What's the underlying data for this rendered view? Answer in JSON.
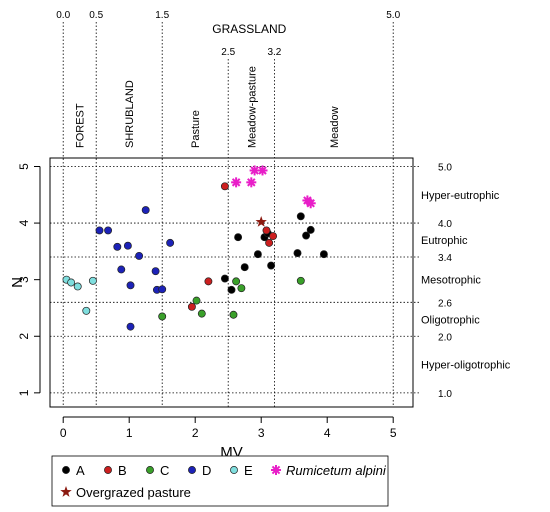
{
  "chart_data": {
    "type": "scatter",
    "xlabel": "MV",
    "ylabel": "N",
    "xlim": [
      -0.2,
      5.3
    ],
    "ylim": [
      0.75,
      5.15
    ],
    "x_ticks": [
      0,
      1,
      2,
      3,
      4,
      5
    ],
    "y_ticks": [
      1,
      2,
      3,
      4,
      5
    ],
    "top_axis": {
      "ticks": [
        0.0,
        0.5,
        1.5,
        2.5,
        3.2,
        5.0
      ],
      "tick_labels": [
        "0.0",
        "0.5",
        "1.5",
        "2.5",
        "3.2",
        "5.0"
      ],
      "group_label": "GRASSLAND",
      "vertical_labels": [
        {
          "text": "FOREST",
          "x": 0.25
        },
        {
          "text": "SHRUBLAND",
          "x": 1.0
        },
        {
          "text": "Pasture",
          "x": 2.0
        },
        {
          "text": "Meadow-pasture",
          "x": 2.85
        },
        {
          "text": "Meadow",
          "x": 4.1
        }
      ]
    },
    "right_axis": {
      "ticks": [
        1.0,
        2.0,
        2.6,
        3.4,
        4.0,
        5.0
      ],
      "tick_labels": [
        "1.0",
        "2.0",
        "2.6",
        "3.4",
        "4.0",
        "5.0"
      ],
      "zones": [
        {
          "label": "Hyper-eutrophic",
          "y": 4.5
        },
        {
          "label": "Eutrophic",
          "y": 3.7
        },
        {
          "label": "Mesotrophic",
          "y": 3.0
        },
        {
          "label": "Oligotrophic",
          "y": 2.3
        },
        {
          "label": "Hyper-oligotrophic",
          "y": 1.5
        }
      ]
    },
    "series": [
      {
        "name": "A",
        "color": "#000000",
        "marker": "circle",
        "points": [
          [
            2.45,
            3.02
          ],
          [
            2.55,
            2.82
          ],
          [
            2.65,
            3.75
          ],
          [
            2.75,
            3.22
          ],
          [
            2.95,
            3.45
          ],
          [
            3.05,
            3.75
          ],
          [
            3.1,
            3.82
          ],
          [
            3.15,
            3.25
          ],
          [
            3.55,
            3.47
          ],
          [
            3.6,
            4.12
          ],
          [
            3.68,
            3.78
          ],
          [
            3.75,
            3.88
          ],
          [
            3.95,
            3.45
          ]
        ]
      },
      {
        "name": "B",
        "color": "#cc1f1f",
        "marker": "circle",
        "points": [
          [
            1.95,
            2.52
          ],
          [
            2.2,
            2.97
          ],
          [
            2.45,
            4.65
          ],
          [
            3.08,
            3.87
          ],
          [
            3.12,
            3.65
          ],
          [
            3.18,
            3.77
          ]
        ]
      },
      {
        "name": "C",
        "color": "#3aa02a",
        "marker": "circle",
        "points": [
          [
            1.5,
            2.35
          ],
          [
            2.02,
            2.63
          ],
          [
            2.1,
            2.4
          ],
          [
            2.58,
            2.38
          ],
          [
            2.62,
            2.97
          ],
          [
            2.7,
            2.85
          ],
          [
            3.6,
            2.98
          ]
        ]
      },
      {
        "name": "D",
        "color": "#1c22b8",
        "marker": "circle",
        "points": [
          [
            0.55,
            3.87
          ],
          [
            0.68,
            3.87
          ],
          [
            0.82,
            3.58
          ],
          [
            0.88,
            3.18
          ],
          [
            0.98,
            3.6
          ],
          [
            1.02,
            2.9
          ],
          [
            1.02,
            2.17
          ],
          [
            1.15,
            3.42
          ],
          [
            1.25,
            4.23
          ],
          [
            1.4,
            3.15
          ],
          [
            1.42,
            2.82
          ],
          [
            1.5,
            2.83
          ],
          [
            1.62,
            3.65
          ]
        ]
      },
      {
        "name": "E",
        "color": "#7fdede",
        "marker": "circle",
        "points": [
          [
            0.05,
            3.0
          ],
          [
            0.12,
            2.95
          ],
          [
            0.22,
            2.88
          ],
          [
            0.35,
            2.45
          ],
          [
            0.45,
            2.98
          ]
        ]
      },
      {
        "name": "Rumicetum alpini",
        "color": "#e81ec8",
        "marker": "asterisk",
        "points": [
          [
            2.62,
            4.72
          ],
          [
            2.85,
            4.72
          ],
          [
            2.9,
            4.93
          ],
          [
            3.02,
            4.93
          ],
          [
            3.7,
            4.4
          ],
          [
            3.75,
            4.35
          ]
        ]
      },
      {
        "name": "Overgrazed pasture",
        "color": "#8b1a10",
        "marker": "star",
        "points": [
          [
            3.0,
            4.02
          ]
        ]
      }
    ],
    "legend_position": "bottom"
  }
}
